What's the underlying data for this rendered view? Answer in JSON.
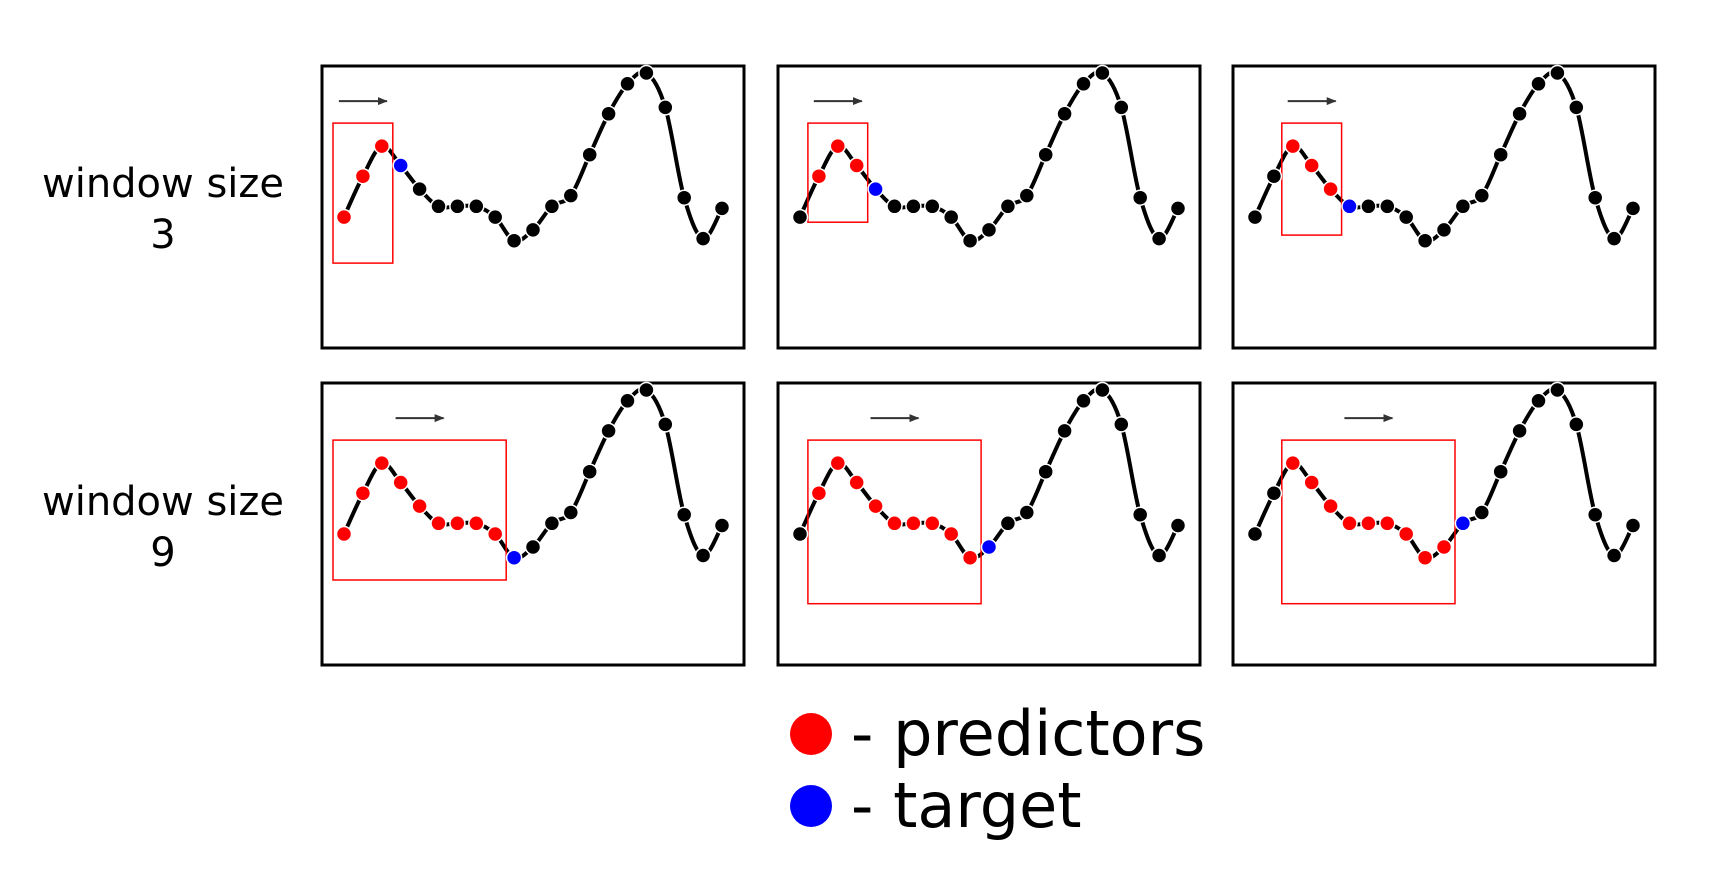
{
  "rows": [
    {
      "label_line1": "window size",
      "label_line2": "3",
      "window_size": 3,
      "panels": [
        {
          "window_start": 0,
          "target_index": 3
        },
        {
          "window_start": 1,
          "target_index": 4
        },
        {
          "window_start": 2,
          "target_index": 5
        }
      ]
    },
    {
      "label_line1": "window size",
      "label_line2": "9",
      "window_size": 9,
      "panels": [
        {
          "window_start": 0,
          "target_index": 9
        },
        {
          "window_start": 1,
          "target_index": 10
        },
        {
          "window_start": 2,
          "target_index": 11
        }
      ]
    }
  ],
  "series_values": [
    0.33,
    0.52,
    0.66,
    0.57,
    0.46,
    0.38,
    0.38,
    0.38,
    0.33,
    0.22,
    0.27,
    0.38,
    0.43,
    0.62,
    0.81,
    0.95,
    1.0,
    0.84,
    0.42,
    0.23,
    0.37
  ],
  "legend": {
    "predictors_label": "- predictors",
    "target_label": "- target"
  },
  "colors": {
    "predictor": "#ff0000",
    "target": "#0000ff",
    "point": "#000000",
    "window_box": "#ff0000",
    "curve": "#000000",
    "panel_border": "#000000",
    "arrow": "#333333"
  }
}
